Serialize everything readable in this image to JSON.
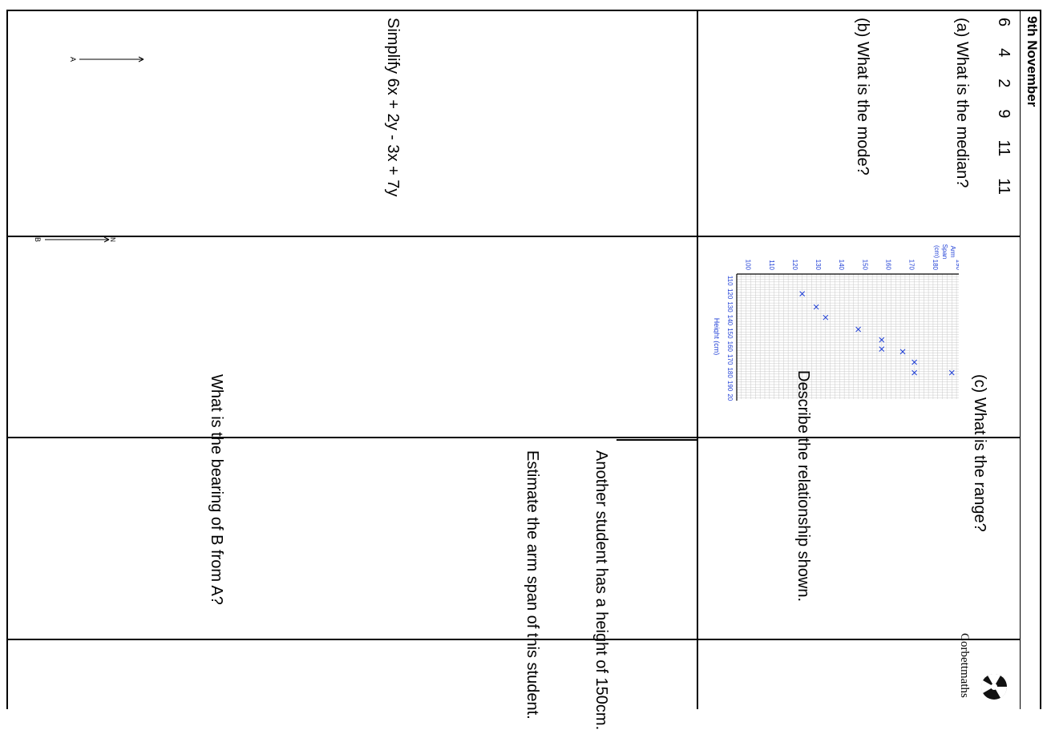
{
  "header": {
    "date": "9th November",
    "brand": "Corbettmaths"
  },
  "q1": {
    "numbers": [
      "6",
      "4",
      "2",
      "9",
      "11",
      "11"
    ],
    "a": "(a) What is the median?",
    "b": "(b) What is the mode?",
    "c": "(c) What is the range?"
  },
  "q2": {
    "describe": "Describe the relationship shown.",
    "another_line1": "Another student has a height of 150cm.",
    "another_line2": "Estimate the arm span of this student."
  },
  "q3": {
    "simplify": "Simplify 6x + 2y - 3x + 7y"
  },
  "q4": {
    "question": "What is the bearing of B from A?",
    "north_label": "N",
    "point_a": "A",
    "point_b": "B"
  },
  "chart_data": {
    "type": "scatter",
    "title": "",
    "xlabel": "Height (cm)",
    "ylabel": "Arm Span (cm)",
    "ylabel_lines": [
      "Arm",
      "Span",
      "(cm)"
    ],
    "xlim": [
      105,
      200
    ],
    "ylim": [
      95,
      190
    ],
    "x_ticks": [
      110,
      120,
      130,
      140,
      150,
      160,
      170,
      180,
      190,
      200
    ],
    "y_ticks": [
      100,
      110,
      120,
      130,
      140,
      150,
      160,
      170,
      180,
      190
    ],
    "grid": true,
    "color": "#1f3fd6",
    "points": [
      {
        "x": 120,
        "y": 123
      },
      {
        "x": 130,
        "y": 129
      },
      {
        "x": 138,
        "y": 133
      },
      {
        "x": 147,
        "y": 147
      },
      {
        "x": 155,
        "y": 157
      },
      {
        "x": 162,
        "y": 157
      },
      {
        "x": 164,
        "y": 166
      },
      {
        "x": 172,
        "y": 171
      },
      {
        "x": 180,
        "y": 171
      },
      {
        "x": 180,
        "y": 187
      }
    ]
  }
}
